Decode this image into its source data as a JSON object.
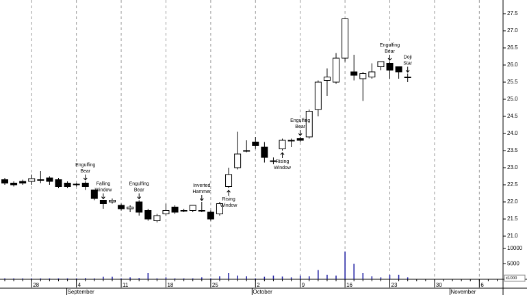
{
  "chart_data": {
    "type": "candlestick",
    "open": [
      22.65,
      22.55,
      22.6,
      22.6,
      22.65,
      22.7,
      22.65,
      22.55,
      22.5,
      22.55,
      22.35,
      22.05,
      22.0,
      21.9,
      21.8,
      22.0,
      21.75,
      21.45,
      21.65,
      21.85,
      21.75,
      21.75,
      21.75,
      21.7,
      21.65,
      22.45,
      23.0,
      23.5,
      23.75,
      23.6,
      23.2,
      23.55,
      23.8,
      23.85,
      23.9,
      24.7,
      25.55,
      25.5,
      26.2,
      25.8,
      25.6,
      25.65,
      25.95,
      26.05,
      25.95,
      25.65
    ],
    "high": [
      22.7,
      22.6,
      22.65,
      22.8,
      22.9,
      22.75,
      22.7,
      22.6,
      22.55,
      22.6,
      22.35,
      22.05,
      22.1,
      21.95,
      21.9,
      22.05,
      21.8,
      21.65,
      21.95,
      21.9,
      21.8,
      21.9,
      22.0,
      21.75,
      22.0,
      23.0,
      24.05,
      23.8,
      23.9,
      23.75,
      23.3,
      23.85,
      23.85,
      23.9,
      24.7,
      25.55,
      25.9,
      26.35,
      27.35,
      26.3,
      25.8,
      26.05,
      26.1,
      26.1,
      25.95,
      25.75
    ],
    "low": [
      22.5,
      22.45,
      22.5,
      22.5,
      22.55,
      22.5,
      22.4,
      22.4,
      22.45,
      22.35,
      22.05,
      21.8,
      21.95,
      21.75,
      21.7,
      21.6,
      21.45,
      21.4,
      21.6,
      21.65,
      21.7,
      21.7,
      21.7,
      21.45,
      21.6,
      22.4,
      22.95,
      23.45,
      23.55,
      23.15,
      23.1,
      23.5,
      23.6,
      23.75,
      23.85,
      24.5,
      25.1,
      25.45,
      26.1,
      25.55,
      24.95,
      25.6,
      25.85,
      25.6,
      25.6,
      25.5
    ],
    "close": [
      22.55,
      22.5,
      22.55,
      22.68,
      22.65,
      22.6,
      22.45,
      22.45,
      22.52,
      22.45,
      22.1,
      21.95,
      22.05,
      21.8,
      21.85,
      21.7,
      21.5,
      21.6,
      21.75,
      21.7,
      21.75,
      21.9,
      21.75,
      21.5,
      21.95,
      22.8,
      23.4,
      23.5,
      23.65,
      23.3,
      23.2,
      23.8,
      23.8,
      23.8,
      24.65,
      25.5,
      25.65,
      26.2,
      27.35,
      25.7,
      25.75,
      25.8,
      26.1,
      25.85,
      25.8,
      25.65
    ],
    "volume": [
      300,
      300,
      300,
      300,
      300,
      300,
      300,
      300,
      300,
      400,
      300,
      800,
      800,
      300,
      600,
      400,
      2000,
      300,
      600,
      300,
      300,
      300,
      600,
      300,
      1000,
      2000,
      1200,
      1000,
      300,
      800,
      1200,
      900,
      600,
      1200,
      1000,
      3000,
      1400,
      1200,
      9000,
      5000,
      2000,
      1000,
      600,
      1400,
      1400,
      600
    ],
    "xlim": [
      -0.535,
      55.65
    ],
    "xticks": [
      {
        "value": 3,
        "label": "28"
      },
      {
        "value": 8,
        "label": "4"
      },
      {
        "value": 13,
        "label": "11"
      },
      {
        "value": 18,
        "label": "18"
      },
      {
        "value": 23,
        "label": "25"
      },
      {
        "value": 28,
        "label": "2"
      },
      {
        "value": 33,
        "label": "9"
      },
      {
        "value": 38,
        "label": "16"
      },
      {
        "value": 43,
        "label": "23"
      },
      {
        "value": 48,
        "label": "30"
      },
      {
        "value": 53,
        "label": "6"
      }
    ],
    "months": [
      {
        "value": 7,
        "label": "September"
      },
      {
        "value": 27.7,
        "label": "October"
      },
      {
        "value": 49.8,
        "label": "November"
      }
    ],
    "ylim": [
      20.5,
      27.9
    ],
    "yticks": [
      {
        "value": 21,
        "label": "21.0"
      },
      {
        "value": 21.5,
        "label": "21.5"
      },
      {
        "value": 22,
        "label": "22.0"
      },
      {
        "value": 22.5,
        "label": "22.5"
      },
      {
        "value": 23,
        "label": "23.0"
      },
      {
        "value": 23.5,
        "label": "23.5"
      },
      {
        "value": 24,
        "label": "24.0"
      },
      {
        "value": 24.5,
        "label": "24.5"
      },
      {
        "value": 25,
        "label": "25.0"
      },
      {
        "value": 25.5,
        "label": "25.5"
      },
      {
        "value": 26,
        "label": "26.0"
      },
      {
        "value": 26.5,
        "label": "26.5"
      },
      {
        "value": 27,
        "label": "27.0"
      },
      {
        "value": 27.5,
        "label": "27.5"
      }
    ],
    "volume_lim": [
      0,
      13000
    ],
    "volume_ticks": [
      5000,
      10000
    ],
    "volume_unit": "x1000",
    "volume_color": "#1a1aa0",
    "grid": true,
    "annotations": [
      {
        "at": 9,
        "side": "above",
        "lines": [
          "Engulfing",
          "Bear"
        ]
      },
      {
        "at": 11,
        "side": "above",
        "lines": [
          "Falling",
          "Window"
        ]
      },
      {
        "at": 15,
        "side": "above",
        "lines": [
          "Engulfing",
          "Bear"
        ]
      },
      {
        "at": 22,
        "side": "above",
        "lines": [
          "Inverted",
          "Hammer"
        ]
      },
      {
        "at": 25,
        "side": "below",
        "lines": [
          "Rising",
          "Window"
        ]
      },
      {
        "at": 31,
        "side": "below",
        "lines": [
          "Rising",
          "Window"
        ]
      },
      {
        "at": 33,
        "side": "above",
        "lines": [
          "Engulfing",
          "Bear"
        ]
      },
      {
        "at": 43,
        "side": "above",
        "lines": [
          "Engulfing",
          "Bear"
        ]
      },
      {
        "at": 45,
        "side": "above",
        "lines": [
          "Doji",
          "Star"
        ]
      }
    ]
  }
}
